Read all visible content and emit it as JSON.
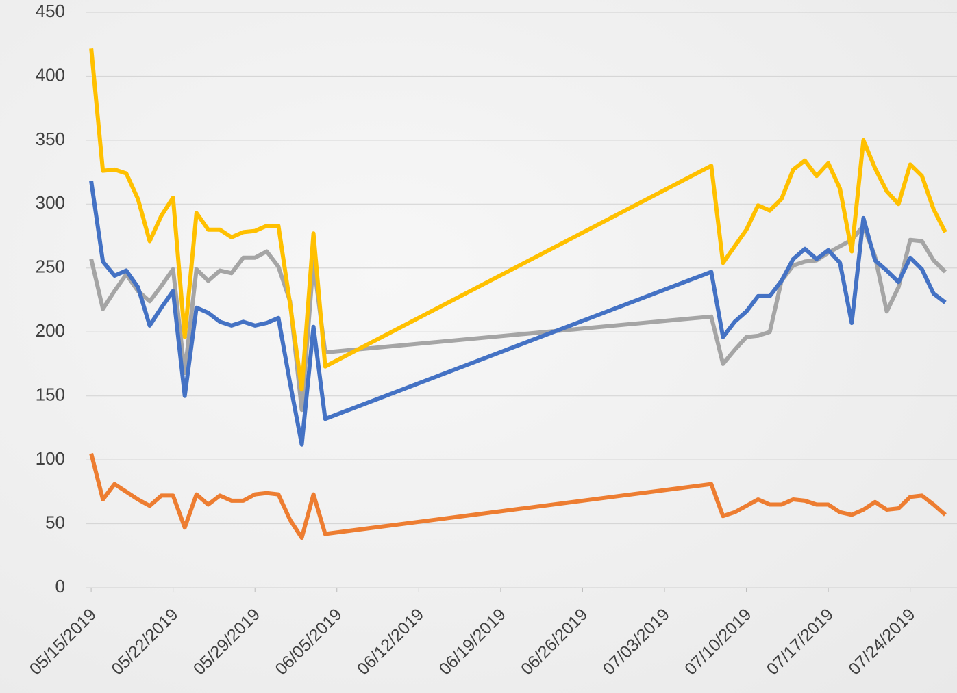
{
  "chart_data": {
    "type": "line",
    "x": [
      "2019-05-15",
      "2019-05-16",
      "2019-05-17",
      "2019-05-18",
      "2019-05-19",
      "2019-05-20",
      "2019-05-21",
      "2019-05-22",
      "2019-05-23",
      "2019-05-24",
      "2019-05-25",
      "2019-05-26",
      "2019-05-27",
      "2019-05-28",
      "2019-05-29",
      "2019-05-30",
      "2019-05-31",
      "2019-06-01",
      "2019-06-02",
      "2019-06-03",
      "2019-06-04",
      "2019-07-07",
      "2019-07-08",
      "2019-07-09",
      "2019-07-10",
      "2019-07-11",
      "2019-07-12",
      "2019-07-13",
      "2019-07-14",
      "2019-07-15",
      "2019-07-16",
      "2019-07-17",
      "2019-07-18",
      "2019-07-19",
      "2019-07-20",
      "2019-07-21",
      "2019-07-22",
      "2019-07-23",
      "2019-07-24",
      "2019-07-25",
      "2019-07-26",
      "2019-07-27"
    ],
    "series": [
      {
        "color": "#ED7D31",
        "values": [
          105,
          69,
          81,
          75,
          69,
          64,
          72,
          72,
          47,
          73,
          65,
          72,
          68,
          68,
          73,
          74,
          73,
          53,
          39,
          73,
          42,
          81,
          56,
          59,
          64,
          69,
          65,
          65,
          69,
          68,
          65,
          65,
          59,
          57,
          61,
          67,
          61,
          62,
          71,
          72,
          65,
          57
        ]
      },
      {
        "color": "#A5A5A5",
        "values": [
          257,
          218,
          232,
          245,
          232,
          224,
          236,
          249,
          168,
          249,
          240,
          248,
          246,
          258,
          258,
          263,
          251,
          224,
          139,
          255,
          184,
          212,
          175,
          186,
          196,
          197,
          200,
          240,
          252,
          255,
          256,
          262,
          267,
          272,
          283,
          259,
          216,
          235,
          272,
          271,
          256,
          247
        ]
      },
      {
        "color": "#4472C4",
        "values": [
          318,
          255,
          244,
          248,
          235,
          205,
          219,
          232,
          150,
          219,
          215,
          208,
          205,
          208,
          205,
          207,
          211,
          160,
          112,
          204,
          132,
          247,
          196,
          208,
          216,
          228,
          228,
          240,
          257,
          265,
          257,
          264,
          254,
          207,
          289,
          256,
          248,
          239,
          258,
          249,
          230,
          223
        ]
      },
      {
        "color": "#FFC000",
        "values": [
          422,
          326,
          327,
          324,
          304,
          271,
          291,
          305,
          196,
          293,
          280,
          280,
          274,
          278,
          279,
          283,
          283,
          222,
          155,
          277,
          173,
          330,
          254,
          267,
          280,
          299,
          295,
          304,
          327,
          334,
          322,
          332,
          312,
          263,
          350,
          328,
          310,
          300,
          331,
          322,
          296,
          278
        ]
      }
    ],
    "xlim": [
      "2019-05-14",
      "2019-07-28"
    ],
    "xticks": [
      {
        "value": "2019-05-15",
        "label": "05/15/2019"
      },
      {
        "value": "2019-05-22",
        "label": "05/22/2019"
      },
      {
        "value": "2019-05-29",
        "label": "05/29/2019"
      },
      {
        "value": "2019-06-05",
        "label": "06/05/2019"
      },
      {
        "value": "2019-06-12",
        "label": "06/12/2019"
      },
      {
        "value": "2019-06-19",
        "label": "06/19/2019"
      },
      {
        "value": "2019-06-26",
        "label": "06/26/2019"
      },
      {
        "value": "2019-07-03",
        "label": "07/03/2019"
      },
      {
        "value": "2019-07-10",
        "label": "07/10/2019"
      },
      {
        "value": "2019-07-17",
        "label": "07/17/2019"
      },
      {
        "value": "2019-07-24",
        "label": "07/24/2019"
      }
    ],
    "ylim": [
      0,
      450
    ],
    "yticks": [
      0,
      50,
      100,
      150,
      200,
      250,
      300,
      350,
      400,
      450
    ],
    "grid": true
  }
}
